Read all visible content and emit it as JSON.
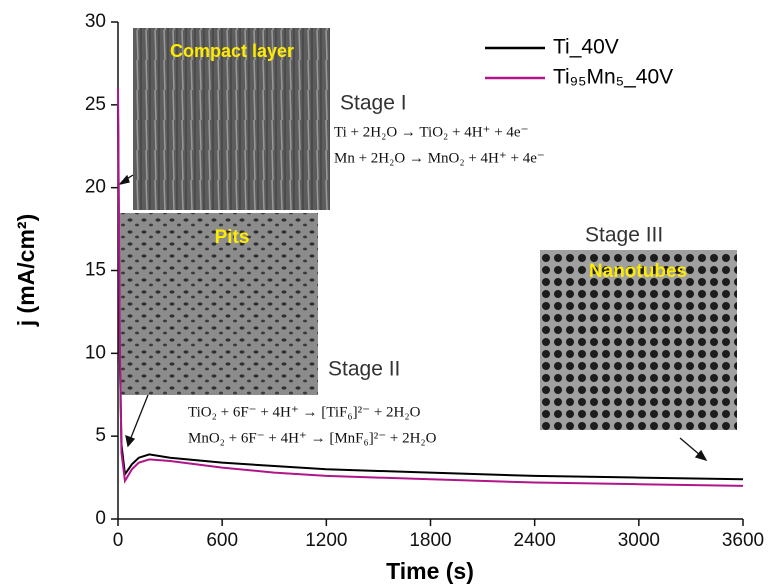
{
  "chart_data": {
    "type": "line",
    "xlabel": "Time (s)",
    "ylabel": "j (mA/cm²)",
    "x": [
      0,
      10,
      20,
      40,
      80,
      120,
      180,
      300,
      600,
      900,
      1200,
      1800,
      2400,
      3000,
      3600
    ],
    "series": [
      {
        "name": "Ti_40V",
        "color": "#000000",
        "values": [
          25,
          10,
          4.5,
          2.7,
          3.3,
          3.7,
          3.9,
          3.7,
          3.4,
          3.2,
          3.0,
          2.8,
          2.6,
          2.5,
          2.4
        ]
      },
      {
        "name": "Ti₉₅Mn₅_40V",
        "color": "#b0168a",
        "values": [
          26,
          11,
          4,
          2.3,
          3.0,
          3.4,
          3.6,
          3.5,
          3.1,
          2.8,
          2.6,
          2.4,
          2.2,
          2.1,
          2.0
        ]
      }
    ],
    "xlim": [
      0,
      3600
    ],
    "xticks": [
      0,
      600,
      1200,
      1800,
      2400,
      3000,
      3600
    ],
    "ylim": [
      0,
      30
    ],
    "yticks": [
      0,
      5,
      10,
      15,
      20,
      25,
      30
    ],
    "legend": "upper right",
    "annotations": {
      "stage1": "Stage I",
      "eq1": "Ti + 2H₂O → TiO₂ + 4H⁺ + 4e⁻",
      "eq2": "Mn + 2H₂O → MnO₂ + 4H⁺ + 4e⁻",
      "stage2": "Stage II",
      "eq3": "TiO₂ + 6F⁻ + 4H⁺ → [TiF₆]²⁻ + 2H₂O",
      "eq4": "MnO₂ + 6F⁻ + 4H⁺ → [MnF₆]²⁻ + 2H₂O",
      "stage3": "Stage III",
      "inset1": "Compact layer",
      "inset2": "Pits",
      "inset3": "Nanotubes"
    }
  }
}
